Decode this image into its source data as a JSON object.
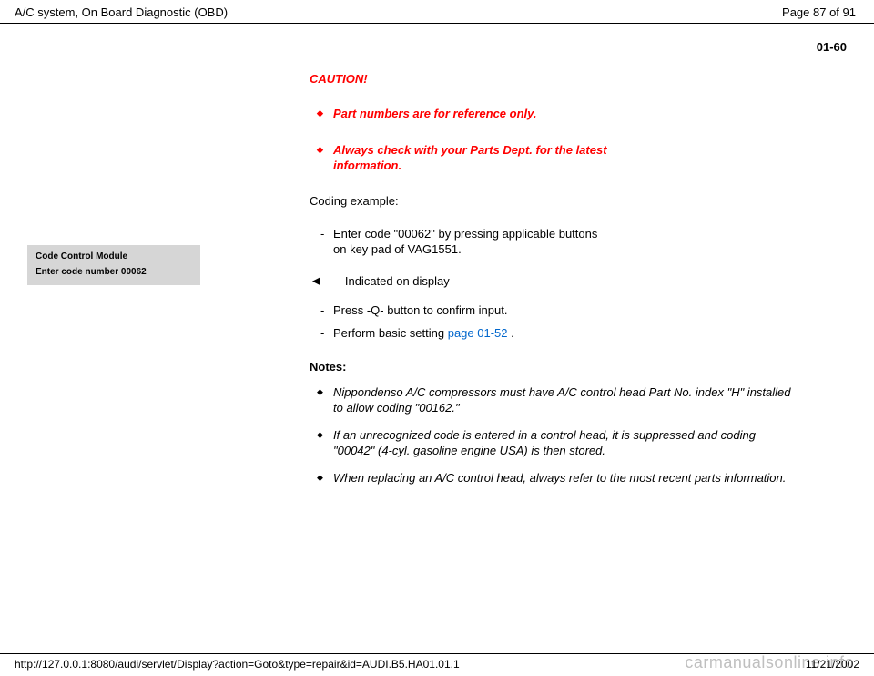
{
  "header": {
    "title": "A/C system, On Board Diagnostic (OBD)",
    "page_indicator": "Page 87 of 91"
  },
  "page_number": "01-60",
  "caution": {
    "title": "CAUTION!",
    "items": [
      "Part numbers are for reference only.",
      "Always check with your Parts Dept. for the latest information."
    ]
  },
  "coding_example_label": "Coding example:",
  "coding_steps": [
    "Enter code \"00062\" by pressing applicable buttons on key pad of VAG1551."
  ],
  "display_box": {
    "line1": "Code Control Module",
    "line2": "Enter code number 00062"
  },
  "indicated": {
    "arrow": "◄",
    "text": "Indicated on display",
    "steps": [
      {
        "text": "Press -Q- button to confirm input."
      },
      {
        "prefix": "Perform basic setting  ",
        "link": "page 01-52",
        "suffix": " ."
      }
    ]
  },
  "notes": {
    "title": "Notes:",
    "items": [
      "Nippondenso A/C compressors must have A/C control head Part No. index \"H\" installed to allow coding \"00162.\"",
      "If an unrecognized code is entered in a control head, it is suppressed and coding \"00042\" (4-cyl. gasoline engine USA) is then stored.",
      "When replacing an A/C control head, always refer to the most recent parts information."
    ]
  },
  "footer": {
    "url": "http://127.0.0.1:8080/audi/servlet/Display?action=Goto&type=repair&id=AUDI.B5.HA01.01.1",
    "date": "11/21/2002"
  },
  "watermark": "carmanualsonline.info"
}
